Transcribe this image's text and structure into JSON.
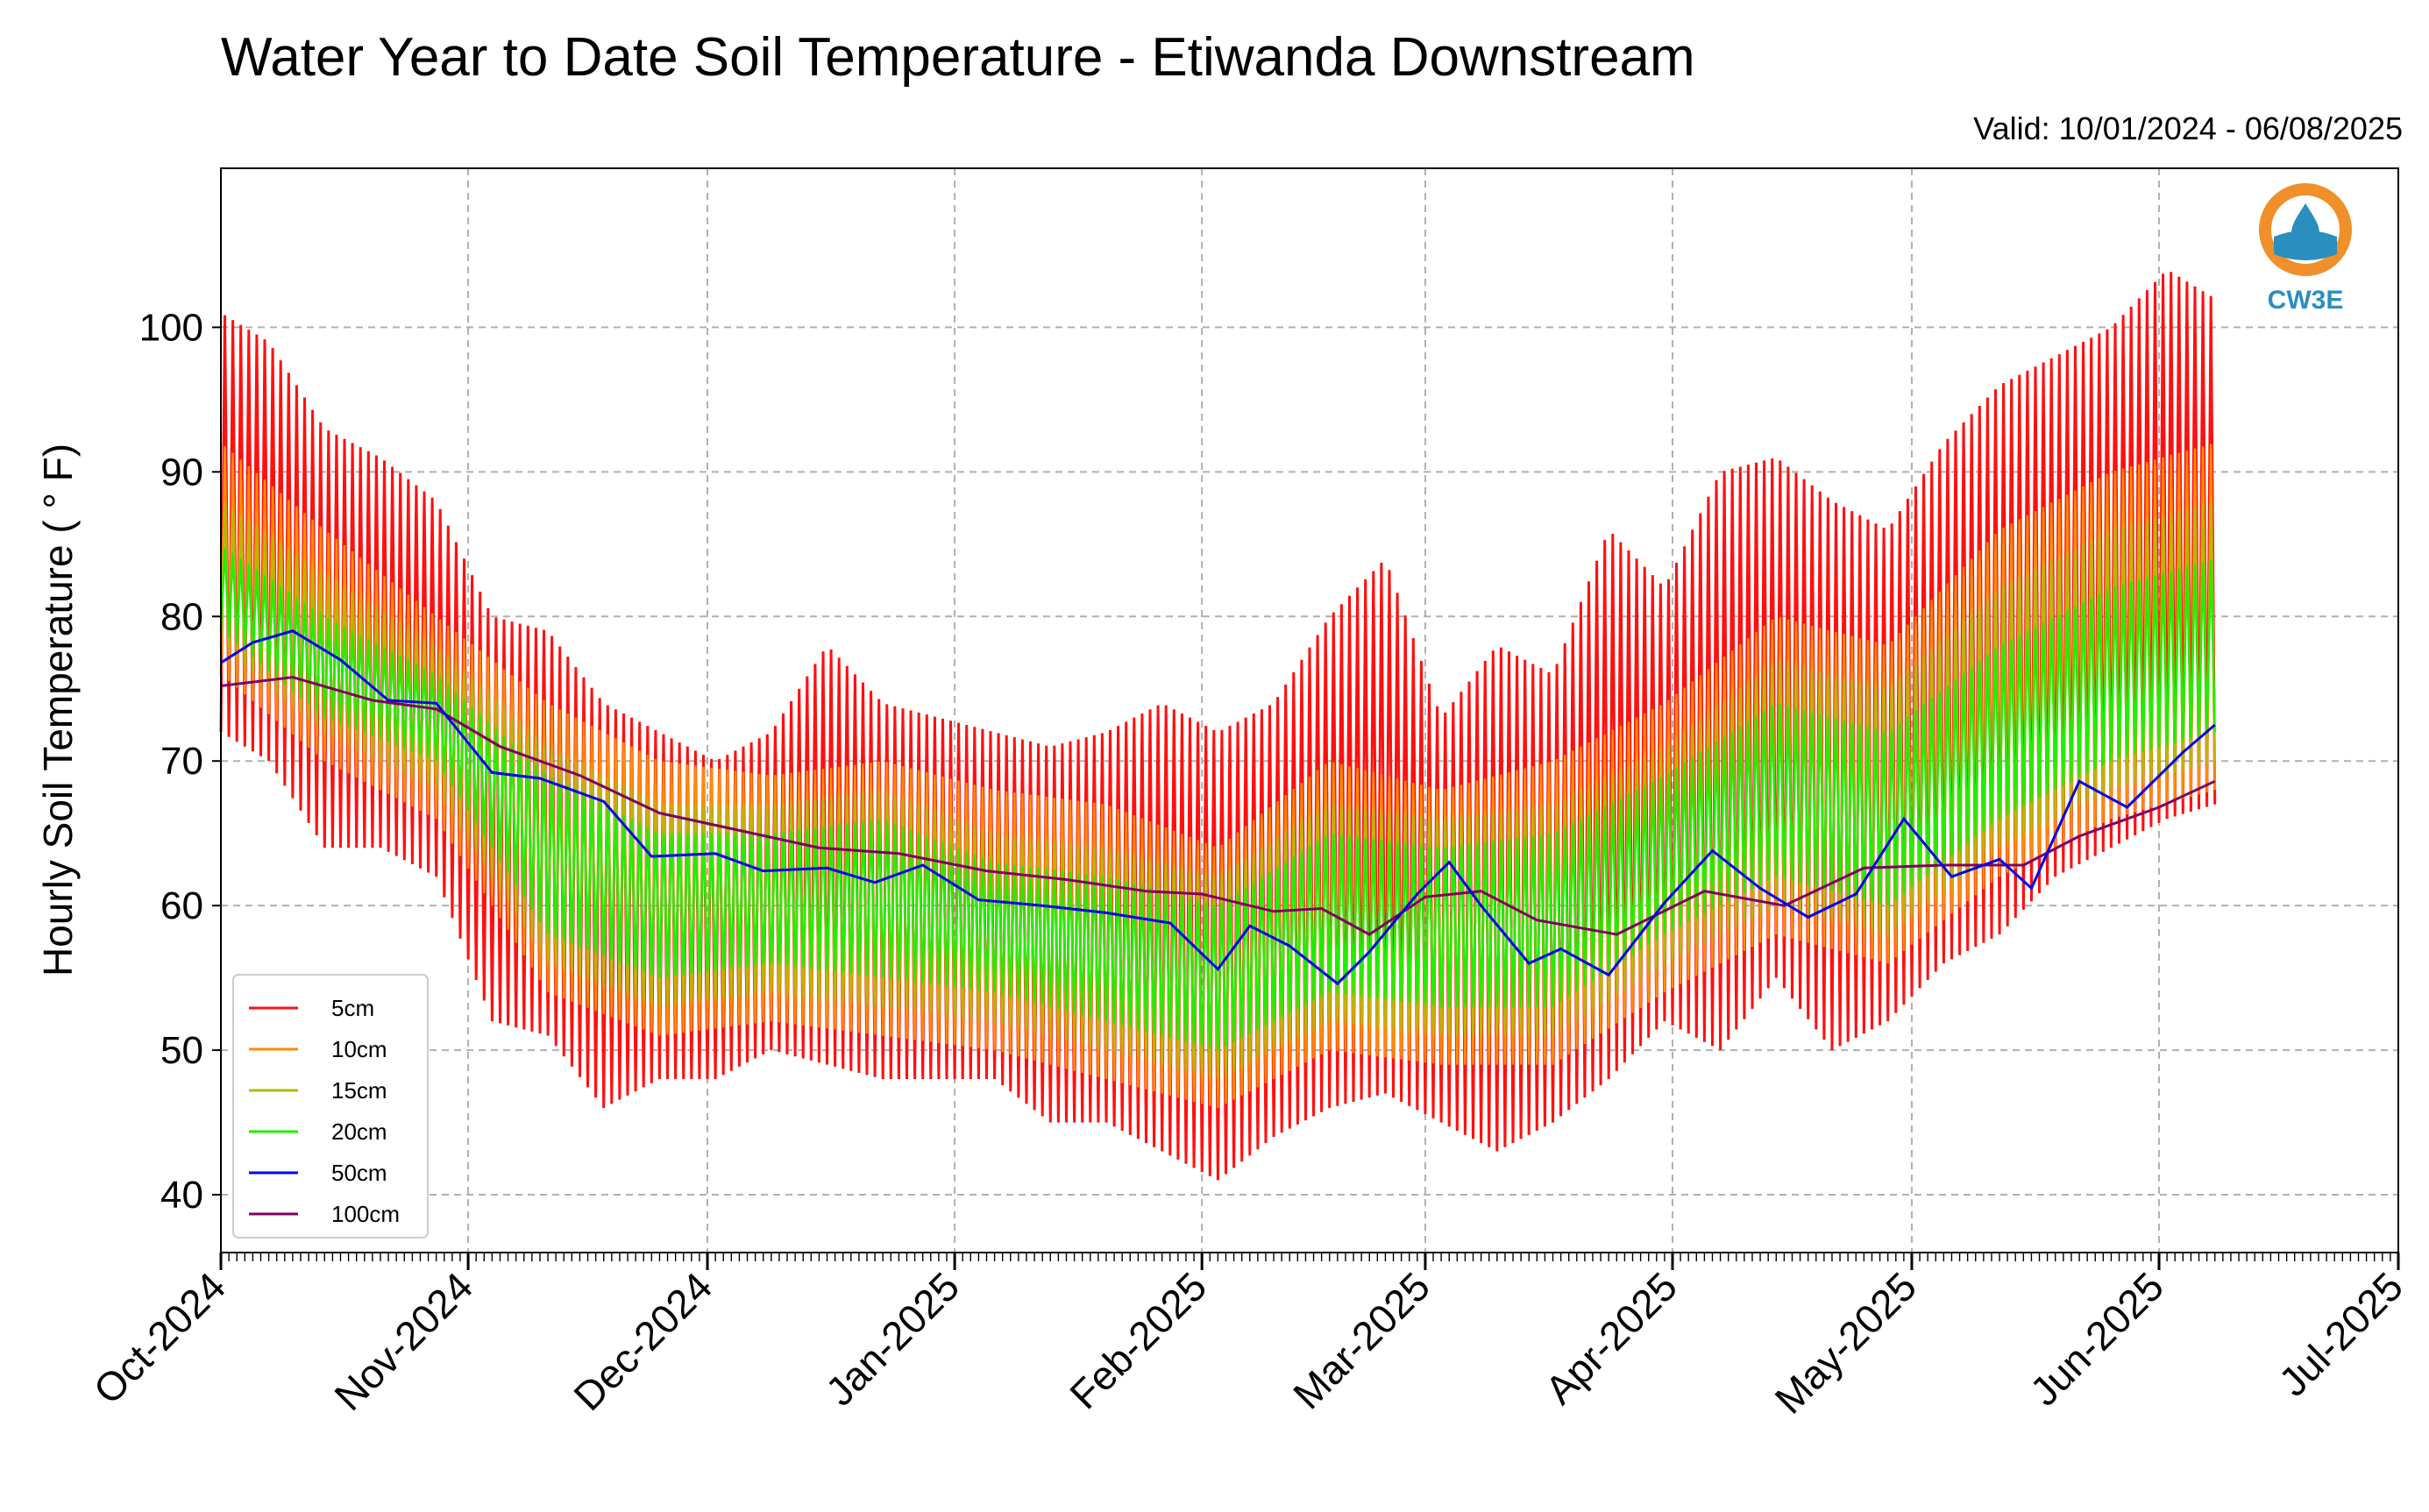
{
  "header": {
    "title": "Water Year to Date Soil Temperature - Etiwanda Downstream",
    "valid": "Valid: 10/01/2024 - 06/08/2025"
  },
  "logo": {
    "text": "CW3E",
    "icon": "water-drop-logo-icon",
    "ring_color": "#f0902a",
    "accent_color": "#2a8fbf"
  },
  "colors": {
    "5cm": "#ff1010",
    "10cm": "#ff8c00",
    "15cm": "#b8b800",
    "20cm": "#22ee00",
    "50cm": "#0000ee",
    "100cm": "#800060"
  },
  "chart_data": {
    "type": "line",
    "title": "Water Year to Date Soil Temperature - Etiwanda Downstream",
    "xlabel": "",
    "ylabel": "Hourly Soil Temperature ( ° F)",
    "ylim": [
      36,
      111
    ],
    "xlim": [
      "2024-10-01",
      "2025-07-01"
    ],
    "grid": true,
    "legend": "lower-left",
    "yticks": [
      40,
      50,
      60,
      70,
      80,
      90,
      100
    ],
    "ytick_labels": [
      "40",
      "50",
      "60",
      "70",
      "80",
      "90",
      "100"
    ],
    "x_ticks": [
      "2024-10-01",
      "2024-11-01",
      "2024-12-01",
      "2025-01-01",
      "2025-02-01",
      "2025-03-01",
      "2025-04-01",
      "2025-05-01",
      "2025-06-01",
      "2025-07-01"
    ],
    "xtick_labels": [
      "Oct-2024",
      "Nov-2024",
      "Dec-2024",
      "Jan-2025",
      "Feb-2025",
      "Mar-2025",
      "Apr-2025",
      "May-2025",
      "Jun-2025",
      "Jul-2025"
    ],
    "x_note": "daily envelopes; x = date",
    "series": [
      {
        "name": "5cm",
        "dates": [
          "2024-10-01",
          "2024-10-07",
          "2024-10-14",
          "2024-10-21",
          "2024-10-28",
          "2024-11-04",
          "2024-11-11",
          "2024-11-18",
          "2024-11-25",
          "2024-12-02",
          "2024-12-09",
          "2024-12-16",
          "2024-12-23",
          "2024-12-30",
          "2025-01-06",
          "2025-01-13",
          "2025-01-20",
          "2025-01-27",
          "2025-02-03",
          "2025-02-10",
          "2025-02-17",
          "2025-02-24",
          "2025-03-03",
          "2025-03-10",
          "2025-03-17",
          "2025-03-24",
          "2025-03-31",
          "2025-04-07",
          "2025-04-14",
          "2025-04-21",
          "2025-04-28",
          "2025-05-05",
          "2025-05-12",
          "2025-05-19",
          "2025-05-26",
          "2025-06-02",
          "2025-06-08"
        ],
        "daily_max": [
          101,
          99,
          93,
          91,
          88,
          80,
          79,
          74,
          72,
          70,
          72,
          78,
          74,
          73,
          72,
          71,
          72,
          74,
          72,
          74,
          80,
          84,
          73,
          78,
          76,
          86,
          82,
          90,
          91,
          88,
          86,
          92,
          96,
          98,
          100,
          104,
          102
        ],
        "daily_min": [
          72,
          70,
          64,
          64,
          62,
          52,
          51,
          46,
          48,
          48,
          50,
          49,
          48,
          48,
          48,
          45,
          45,
          43,
          41,
          44,
          46,
          47,
          45,
          43,
          45,
          48,
          52,
          50,
          55,
          50,
          52,
          56,
          58,
          62,
          64,
          66,
          67
        ]
      },
      {
        "name": "10cm",
        "dates": [
          "2024-10-01",
          "2024-10-14",
          "2024-10-28",
          "2024-11-11",
          "2024-11-25",
          "2024-12-09",
          "2024-12-23",
          "2025-01-06",
          "2025-01-20",
          "2025-02-03",
          "2025-02-17",
          "2025-03-03",
          "2025-03-17",
          "2025-03-31",
          "2025-04-14",
          "2025-04-28",
          "2025-05-12",
          "2025-05-26",
          "2025-06-08"
        ],
        "daily_max": [
          92,
          86,
          80,
          74,
          70,
          69,
          70,
          68,
          67,
          64,
          70,
          68,
          70,
          74,
          80,
          78,
          86,
          90,
          92
        ],
        "daily_min": [
          76,
          70,
          66,
          54,
          51,
          52,
          51,
          50,
          48,
          46,
          50,
          49,
          49,
          54,
          58,
          56,
          62,
          66,
          68
        ]
      },
      {
        "name": "15cm",
        "dates": [
          "2024-10-01",
          "2024-10-14",
          "2024-10-28",
          "2024-11-11",
          "2024-11-25",
          "2024-12-09",
          "2024-12-23",
          "2025-01-06",
          "2025-01-20",
          "2025-02-03",
          "2025-02-17",
          "2025-03-03",
          "2025-03-17",
          "2025-03-31",
          "2025-04-14",
          "2025-04-28",
          "2025-05-12",
          "2025-05-26",
          "2025-06-08"
        ],
        "daily_max": [
          88,
          83,
          78,
          71,
          67,
          67,
          68,
          65,
          64,
          62,
          67,
          66,
          67,
          71,
          77,
          75,
          82,
          86,
          88
        ],
        "daily_min": [
          78,
          72,
          68,
          56,
          53,
          54,
          53,
          52,
          50,
          48,
          52,
          51,
          51,
          56,
          60,
          58,
          64,
          68,
          70
        ]
      },
      {
        "name": "20cm",
        "dates": [
          "2024-10-01",
          "2024-10-14",
          "2024-10-28",
          "2024-11-11",
          "2024-11-25",
          "2024-12-09",
          "2024-12-23",
          "2025-01-06",
          "2025-01-20",
          "2025-02-03",
          "2025-02-17",
          "2025-03-03",
          "2025-03-17",
          "2025-03-31",
          "2025-04-14",
          "2025-04-28",
          "2025-05-12",
          "2025-05-26",
          "2025-06-08"
        ],
        "daily_max": [
          85,
          80,
          76,
          69,
          65,
          65,
          66,
          63,
          62,
          60,
          65,
          64,
          65,
          69,
          74,
          72,
          78,
          82,
          84
        ],
        "daily_min": [
          79,
          73,
          70,
          58,
          55,
          56,
          55,
          54,
          52,
          50,
          54,
          53,
          53,
          58,
          62,
          60,
          66,
          70,
          72
        ]
      },
      {
        "name": "50cm",
        "dates": [
          "2024-10-01",
          "2024-10-05",
          "2024-10-10",
          "2024-10-16",
          "2024-10-22",
          "2024-10-28",
          "2024-11-04",
          "2024-11-10",
          "2024-11-18",
          "2024-11-24",
          "2024-12-02",
          "2024-12-08",
          "2024-12-16",
          "2024-12-22",
          "2024-12-28",
          "2025-01-04",
          "2025-01-12",
          "2025-01-20",
          "2025-01-28",
          "2025-02-03",
          "2025-02-07",
          "2025-02-12",
          "2025-02-18",
          "2025-02-22",
          "2025-02-28",
          "2025-03-04",
          "2025-03-08",
          "2025-03-14",
          "2025-03-18",
          "2025-03-24",
          "2025-03-31",
          "2025-04-06",
          "2025-04-12",
          "2025-04-18",
          "2025-04-24",
          "2025-04-30",
          "2025-05-06",
          "2025-05-12",
          "2025-05-16",
          "2025-05-22",
          "2025-05-28",
          "2025-06-04",
          "2025-06-08"
        ],
        "values": [
          76.8,
          78.2,
          79.0,
          77.0,
          74.2,
          74.0,
          69.2,
          68.8,
          67.2,
          63.4,
          63.6,
          62.4,
          62.6,
          61.6,
          62.8,
          60.4,
          60.0,
          59.5,
          58.8,
          55.6,
          58.6,
          57.2,
          54.6,
          56.8,
          60.8,
          63.0,
          60.0,
          56.0,
          57.0,
          55.2,
          60.2,
          63.8,
          61.2,
          59.2,
          60.8,
          66.0,
          62.0,
          63.2,
          61.2,
          68.6,
          66.8,
          70.6,
          72.5
        ]
      },
      {
        "name": "100cm",
        "dates": [
          "2024-10-01",
          "2024-10-10",
          "2024-10-20",
          "2024-10-28",
          "2024-11-05",
          "2024-11-15",
          "2024-11-25",
          "2024-12-05",
          "2024-12-15",
          "2024-12-25",
          "2025-01-05",
          "2025-01-15",
          "2025-01-25",
          "2025-02-01",
          "2025-02-10",
          "2025-02-16",
          "2025-02-22",
          "2025-03-01",
          "2025-03-08",
          "2025-03-15",
          "2025-03-25",
          "2025-04-05",
          "2025-04-15",
          "2025-04-25",
          "2025-05-05",
          "2025-05-15",
          "2025-05-22",
          "2025-06-01",
          "2025-06-08"
        ],
        "values": [
          75.2,
          75.8,
          74.2,
          73.6,
          71.0,
          69.0,
          66.4,
          65.2,
          64.0,
          63.6,
          62.4,
          61.8,
          61.0,
          60.8,
          59.6,
          59.8,
          58.0,
          60.6,
          61.0,
          59.0,
          58.0,
          61.0,
          60.0,
          62.6,
          62.8,
          62.8,
          64.8,
          66.8,
          68.6
        ]
      }
    ]
  }
}
